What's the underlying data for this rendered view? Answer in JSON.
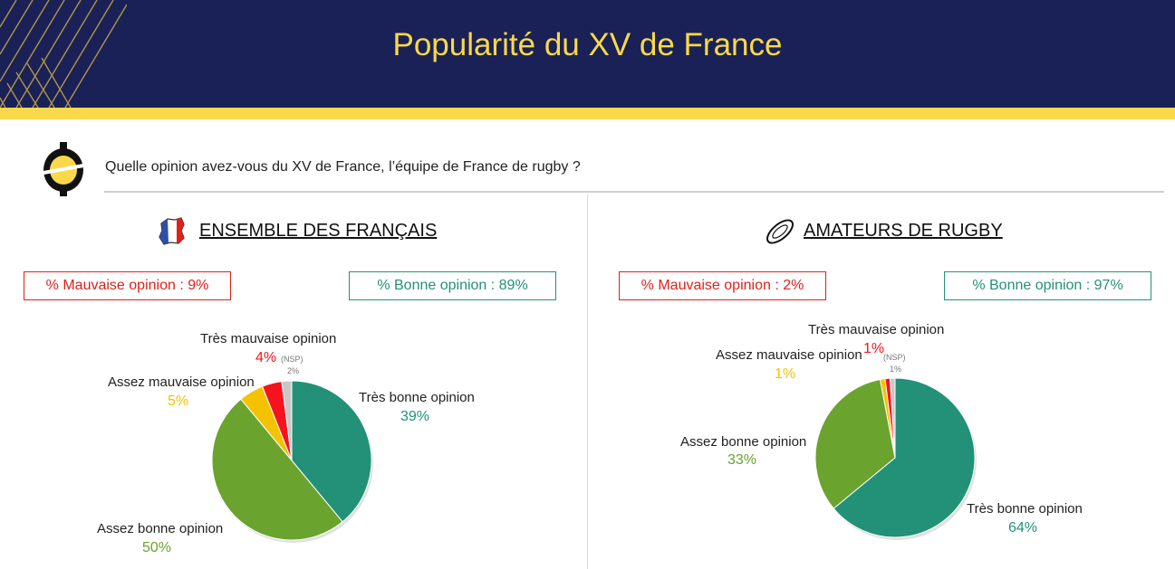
{
  "header": {
    "title": "Popularité du XV de France",
    "colors": {
      "navy": "#1a2156",
      "yellow": "#f9d94a"
    }
  },
  "question": "Quelle opinion avez-vous du XV de France, l’équipe de France de rugby ?",
  "panels": [
    {
      "title": "ENSEMBLE DES FRANÇAIS",
      "icon": "france-map-icon",
      "bad_box": "% Mauvaise opinion : 9%",
      "good_box": "% Bonne opinion : 89%",
      "labels": {
        "tres_bonne": "Très bonne opinion",
        "tres_bonne_pct": "39%",
        "assez_bonne": "Assez bonne opinion",
        "assez_bonne_pct": "50%",
        "assez_mauvaise": "Assez mauvaise opinion",
        "assez_mauvaise_pct": "5%",
        "tres_mauvaise": "Très mauvaise opinion",
        "tres_mauvaise_pct": "4%",
        "nsp": "(NSP)",
        "nsp_pct": "2%"
      }
    },
    {
      "title": "AMATEURS DE RUGBY",
      "icon": "rugby-ball-icon",
      "bad_box": "% Mauvaise opinion : 2%",
      "good_box": "% Bonne opinion : 97%",
      "labels": {
        "tres_bonne": "Très bonne opinion",
        "tres_bonne_pct": "64%",
        "assez_bonne": "Assez bonne opinion",
        "assez_bonne_pct": "33%",
        "assez_mauvaise": "Assez mauvaise opinion",
        "assez_mauvaise_pct": "1%",
        "tres_mauvaise": "Très mauvaise opinion",
        "tres_mauvaise_pct": "1%",
        "nsp": "(NSP)",
        "nsp_pct": "1%"
      }
    }
  ],
  "chart_data": [
    {
      "type": "pie",
      "title": "ENSEMBLE DES FRANÇAIS",
      "categories": [
        "Très bonne opinion",
        "Assez bonne opinion",
        "Assez mauvaise opinion",
        "Très mauvaise opinion",
        "(NSP)"
      ],
      "values": [
        39,
        50,
        5,
        4,
        2
      ],
      "colors": [
        "#239177",
        "#6aa32e",
        "#f5c200",
        "#f5141e",
        "#c8c8c8"
      ]
    },
    {
      "type": "pie",
      "title": "AMATEURS DE RUGBY",
      "categories": [
        "Très bonne opinion",
        "Assez bonne opinion",
        "Assez mauvaise opinion",
        "Très mauvaise opinion",
        "(NSP)"
      ],
      "values": [
        64,
        33,
        1,
        1,
        1
      ],
      "colors": [
        "#239177",
        "#6aa32e",
        "#f5c200",
        "#f5141e",
        "#c8c8c8"
      ]
    }
  ]
}
